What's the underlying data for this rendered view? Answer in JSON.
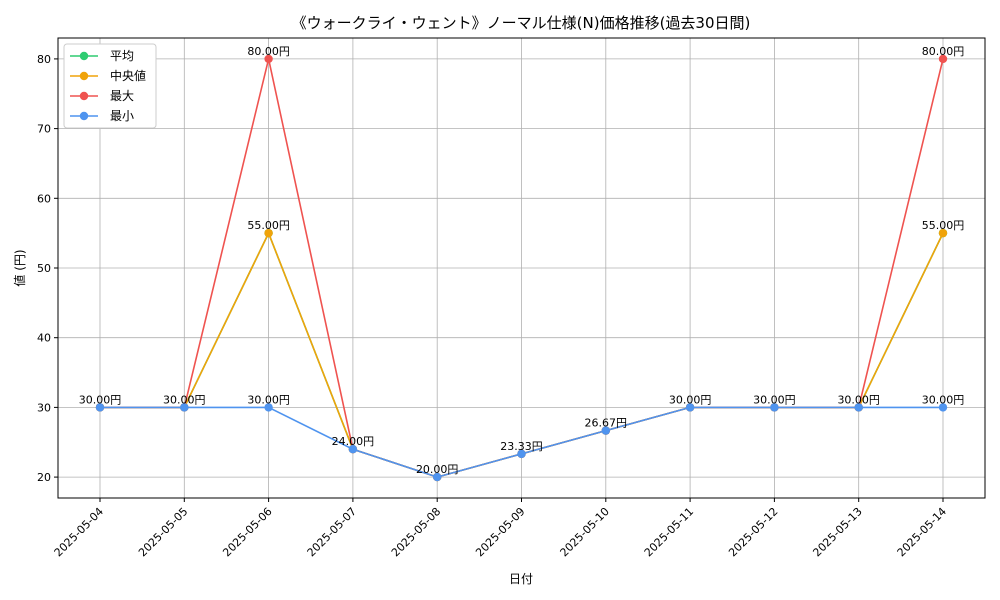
{
  "chart_data": {
    "type": "line",
    "title": "《ウォークライ・ウェント》ノーマル仕様(N)価格推移(過去30日間)",
    "xlabel": "日付",
    "ylabel": "値 (円)",
    "ylim": [
      17,
      83
    ],
    "yticks": [
      20,
      30,
      40,
      50,
      60,
      70,
      80
    ],
    "grid": true,
    "legend_position": "top-left",
    "value_suffix": "円",
    "categories": [
      "2025-05-04",
      "2025-05-05",
      "2025-05-06",
      "2025-05-07",
      "2025-05-08",
      "2025-05-09",
      "2025-05-10",
      "2025-05-11",
      "2025-05-12",
      "2025-05-13",
      "2025-05-14"
    ],
    "series": [
      {
        "name": "平均",
        "color": "#2ecc71",
        "values": [
          30,
          30,
          55,
          24,
          20,
          23.33,
          26.67,
          30,
          30,
          30,
          55
        ]
      },
      {
        "name": "中央値",
        "color": "#f0a30a",
        "values": [
          30,
          30,
          55,
          24,
          20,
          23.33,
          26.67,
          30,
          30,
          30,
          55
        ]
      },
      {
        "name": "最大",
        "color": "#ef5350",
        "values": [
          30,
          30,
          80,
          24,
          20,
          23.33,
          26.67,
          30,
          30,
          30,
          80
        ]
      },
      {
        "name": "最小",
        "color": "#4f94ef",
        "values": [
          30,
          30,
          30,
          24,
          20,
          23.33,
          26.67,
          30,
          30,
          30,
          30
        ]
      }
    ]
  }
}
